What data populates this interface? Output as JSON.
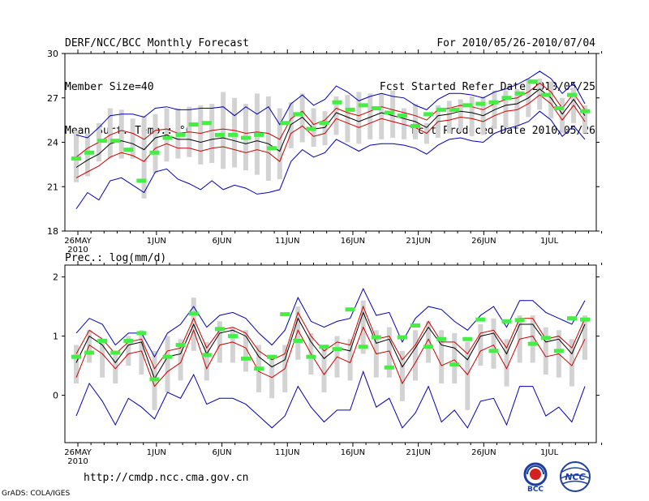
{
  "header": {
    "left_lines": [
      "DERF/NCC/BCC Monthly Forecast",
      "Member Size=40",
      "Mean Surf. Temp.: °C"
    ],
    "right_lines": [
      "For 2010/05/26-2010/07/04",
      "Fcst Started Refer Date 2010/05/25",
      "Fcst Produced Date 2010/05/26"
    ]
  },
  "footer": {
    "url": "http://cmdp.ncc.cma.gov.cn",
    "grads": "GrADS: COLA/IGES",
    "logo_bcc": "BCC",
    "logo_ncc": "NCC"
  },
  "colors": {
    "ensemble_mean": "#000000",
    "inner_bound": "#cc0000",
    "outer_bound": "#0000b0",
    "spread_bar": "#d3d3d3",
    "member_marker": "#44ee44"
  },
  "chart_data": [
    {
      "type": "line",
      "title": "Mean Surf. Temp.: °C",
      "x_tick_labels": [
        "26MAY",
        "1JUN",
        "6JUN",
        "11JUN",
        "16JUN",
        "21JUN",
        "26JUN",
        "1JUL"
      ],
      "x_tick_days": [
        0,
        6,
        11,
        16,
        21,
        26,
        31,
        36
      ],
      "x_sub_label": "2010",
      "ylim": [
        18,
        30
      ],
      "y_ticks": [
        18,
        21,
        24,
        27,
        30
      ],
      "series": [
        {
          "name": "mean",
          "values": [
            22.3,
            22.8,
            23.2,
            23.9,
            24.1,
            23.9,
            23.5,
            24.3,
            24.5,
            24.2,
            24.2,
            24.0,
            24.2,
            24.3,
            24.1,
            23.9,
            24.1,
            23.9,
            23.4,
            25.2,
            25.7,
            24.9,
            25.0,
            26.0,
            25.7,
            25.4,
            25.7,
            26.0,
            25.8,
            25.6,
            25.4,
            25.0,
            25.8,
            25.9,
            26.1,
            26.0,
            25.8,
            26.2,
            26.5,
            26.6,
            27.0,
            27.6,
            27.0,
            25.9,
            26.9,
            25.8
          ]
        },
        {
          "name": "upper_red",
          "values": [
            23.0,
            23.6,
            24.0,
            24.5,
            24.8,
            24.6,
            24.2,
            24.8,
            24.9,
            24.6,
            24.7,
            24.6,
            24.8,
            24.9,
            24.8,
            24.6,
            24.7,
            24.6,
            24.2,
            25.6,
            26.1,
            25.2,
            25.5,
            26.3,
            26.0,
            25.8,
            26.1,
            26.4,
            26.2,
            26.0,
            25.8,
            25.5,
            26.2,
            26.3,
            26.5,
            26.4,
            26.2,
            26.6,
            26.9,
            27.0,
            27.4,
            28.0,
            27.4,
            26.3,
            27.3,
            26.2
          ]
        },
        {
          "name": "lower_red",
          "values": [
            21.6,
            22.0,
            22.4,
            23.0,
            23.3,
            23.1,
            22.7,
            23.6,
            23.9,
            23.6,
            23.6,
            23.4,
            23.6,
            23.7,
            23.5,
            23.3,
            23.5,
            23.3,
            22.7,
            24.6,
            25.1,
            24.4,
            24.6,
            25.6,
            25.3,
            25.0,
            25.3,
            25.6,
            25.4,
            25.2,
            25.0,
            24.6,
            25.4,
            25.5,
            25.7,
            25.6,
            25.4,
            25.8,
            26.1,
            26.2,
            26.6,
            27.2,
            26.6,
            25.5,
            26.5,
            25.4
          ]
        },
        {
          "name": "upper_blue",
          "values": [
            24.5,
            24.3,
            25.0,
            25.8,
            25.9,
            25.9,
            25.7,
            26.3,
            26.4,
            26.2,
            26.2,
            26.3,
            26.3,
            26.4,
            25.8,
            26.4,
            25.9,
            26.4,
            25.2,
            26.6,
            27.2,
            26.5,
            26.9,
            27.8,
            27.4,
            26.8,
            27.1,
            27.3,
            27.1,
            27.0,
            26.5,
            26.2,
            26.9,
            27.3,
            27.3,
            27.2,
            27.0,
            27.4,
            27.6,
            27.9,
            28.3,
            28.8,
            28.3,
            27.3,
            28.0,
            26.6
          ]
        },
        {
          "name": "lower_blue",
          "values": [
            19.5,
            20.6,
            20.1,
            21.4,
            21.6,
            21.1,
            20.6,
            22.0,
            22.2,
            21.5,
            21.2,
            20.8,
            21.4,
            20.8,
            21.1,
            20.9,
            20.5,
            20.6,
            20.8,
            22.7,
            23.5,
            23.0,
            23.3,
            24.2,
            23.8,
            23.4,
            23.8,
            23.9,
            23.9,
            23.8,
            23.6,
            23.2,
            23.8,
            24.2,
            24.3,
            24.1,
            24.0,
            24.6,
            24.9,
            25.1,
            25.4,
            26.1,
            25.5,
            24.4,
            25.1,
            24.2
          ]
        },
        {
          "name": "spread_top",
          "values": [
            24.8,
            24.6,
            25.3,
            26.3,
            26.2,
            25.6,
            25.8,
            25.9,
            26.3,
            26.3,
            26.4,
            26.5,
            26.6,
            27.4,
            27.0,
            26.6,
            27.3,
            27.1,
            26.3,
            26.7,
            27.3,
            26.3,
            26.1,
            27.1,
            27.2,
            27.4,
            27.3,
            27.3,
            27.5,
            26.3,
            26.6,
            25.3,
            26.5,
            26.8,
            26.9,
            27.1,
            27.1,
            27.5,
            27.5,
            27.6,
            28.3,
            28.3,
            28.1,
            27.0,
            27.7,
            26.5
          ]
        },
        {
          "name": "spread_bottom",
          "values": [
            21.3,
            21.7,
            22.7,
            22.9,
            22.9,
            22.9,
            20.2,
            21.9,
            22.7,
            22.9,
            23.0,
            22.5,
            22.6,
            22.2,
            22.3,
            22.1,
            21.8,
            21.4,
            21.5,
            23.6,
            24.0,
            23.7,
            23.8,
            24.5,
            24.0,
            23.9,
            24.2,
            24.2,
            24.3,
            24.2,
            24.2,
            23.9,
            24.3,
            24.6,
            24.7,
            24.4,
            24.5,
            24.9,
            25.0,
            25.1,
            25.7,
            26.2,
            25.6,
            24.6,
            25.3,
            24.6
          ]
        },
        {
          "name": "green_markers",
          "values": [
            22.9,
            23.3,
            24.1,
            24.1,
            23.5,
            21.4,
            23.3,
            24.3,
            24.5,
            25.2,
            25.3,
            24.5,
            24.5,
            24.3,
            24.5,
            23.6,
            25.3,
            25.9,
            24.9,
            25.3,
            26.7,
            26.2,
            26.5,
            26.3,
            26.0,
            25.8,
            25.1,
            25.9,
            26.2,
            26.2,
            26.5,
            26.6,
            26.7,
            27.0,
            27.3,
            28.1,
            27.2,
            26.3,
            27.2,
            26.1
          ]
        }
      ]
    },
    {
      "type": "line",
      "title": "Prec.: log(mm/d)",
      "x_tick_labels": [
        "26MAY",
        "1JUN",
        "6JUN",
        "11JUN",
        "16JUN",
        "21JUN",
        "26JUN",
        "1JUL"
      ],
      "x_tick_days": [
        0,
        6,
        11,
        16,
        21,
        26,
        31,
        36
      ],
      "x_sub_label": "2010",
      "ylim": [
        -0.8,
        2.2
      ],
      "y_ticks": [
        0,
        1,
        2
      ],
      "series": [
        {
          "name": "mean",
          "values": [
            0.55,
            1.0,
            0.85,
            0.55,
            0.85,
            0.9,
            0.28,
            0.65,
            0.7,
            1.2,
            0.7,
            1.05,
            1.1,
            1.0,
            0.65,
            0.48,
            0.6,
            1.3,
            0.9,
            0.62,
            0.8,
            0.75,
            1.4,
            0.88,
            0.95,
            0.48,
            0.8,
            1.15,
            0.85,
            0.8,
            0.6,
            1.0,
            1.05,
            0.7,
            1.2,
            1.2,
            0.9,
            0.95,
            0.7,
            1.2
          ]
        },
        {
          "name": "upper_red",
          "values": [
            0.7,
            1.1,
            0.95,
            0.7,
            0.9,
            0.95,
            0.45,
            0.75,
            0.8,
            1.3,
            0.8,
            1.1,
            1.15,
            1.05,
            0.75,
            0.6,
            0.7,
            1.4,
            1.0,
            0.75,
            0.9,
            0.85,
            1.5,
            0.95,
            1.0,
            0.6,
            0.85,
            1.25,
            0.9,
            0.9,
            0.7,
            1.05,
            1.1,
            0.8,
            1.3,
            1.3,
            0.95,
            1.0,
            0.8,
            1.3
          ]
        },
        {
          "name": "lower_red",
          "values": [
            0.3,
            0.85,
            0.7,
            0.45,
            0.7,
            0.75,
            0.15,
            0.4,
            0.55,
            1.1,
            0.45,
            0.85,
            0.9,
            0.8,
            0.4,
            0.3,
            0.45,
            1.1,
            0.7,
            0.35,
            0.65,
            0.55,
            1.15,
            0.7,
            0.75,
            0.2,
            0.55,
            0.95,
            0.5,
            0.6,
            0.35,
            0.75,
            0.85,
            0.45,
            0.95,
            1.0,
            0.65,
            0.7,
            0.5,
            0.95
          ]
        },
        {
          "name": "upper_blue",
          "values": [
            1.05,
            1.3,
            1.2,
            0.85,
            1.05,
            1.05,
            0.65,
            1.05,
            1.2,
            1.5,
            1.15,
            1.35,
            1.4,
            1.3,
            1.05,
            0.85,
            1.1,
            1.65,
            1.25,
            1.15,
            1.25,
            1.3,
            1.8,
            1.35,
            1.4,
            0.9,
            1.3,
            1.5,
            1.45,
            1.25,
            1.1,
            1.35,
            1.5,
            1.15,
            1.6,
            1.6,
            1.4,
            1.3,
            1.2,
            1.6
          ]
        },
        {
          "name": "lower_blue",
          "values": [
            -0.35,
            0.2,
            -0.1,
            -0.5,
            -0.05,
            -0.2,
            -0.4,
            0.05,
            -0.05,
            0.35,
            -0.15,
            -0.05,
            -0.05,
            -0.15,
            -0.35,
            -0.55,
            -0.35,
            0.15,
            -0.2,
            -0.45,
            -0.25,
            -0.25,
            0.4,
            -0.2,
            -0.05,
            -0.55,
            -0.3,
            0.15,
            -0.45,
            -0.25,
            -0.55,
            -0.1,
            -0.05,
            -0.5,
            0.15,
            0.15,
            -0.35,
            -0.2,
            -0.45,
            0.15
          ]
        },
        {
          "name": "spread_top",
          "values": [
            0.85,
            1.1,
            0.9,
            0.7,
            1.0,
            1.1,
            0.75,
            1.0,
            0.95,
            1.65,
            0.9,
            1.25,
            1.15,
            1.1,
            0.85,
            0.65,
            0.85,
            1.5,
            1.05,
            0.85,
            1.0,
            0.95,
            1.6,
            1.1,
            1.15,
            0.75,
            1.1,
            1.25,
            1.1,
            1.05,
            0.9,
            1.2,
            1.3,
            0.95,
            1.35,
            1.35,
            1.15,
            1.1,
            0.95,
            1.35
          ]
        },
        {
          "name": "spread_bottom",
          "values": [
            0.2,
            0.55,
            0.3,
            0.2,
            0.5,
            0.35,
            -0.25,
            0.05,
            0.25,
            0.75,
            0.25,
            0.55,
            0.55,
            0.4,
            0.05,
            -0.05,
            0.05,
            0.6,
            0.35,
            0.05,
            0.3,
            0.25,
            0.7,
            0.3,
            0.3,
            -0.1,
            0.25,
            0.55,
            0.2,
            0.2,
            -0.25,
            0.5,
            0.45,
            0.15,
            0.55,
            0.55,
            0.35,
            0.3,
            0.15,
            0.6
          ]
        },
        {
          "name": "green_markers",
          "values": [
            0.65,
            0.72,
            0.92,
            0.72,
            0.92,
            1.05,
            0.27,
            0.65,
            0.85,
            1.38,
            0.68,
            1.12,
            1.0,
            0.62,
            0.45,
            0.65,
            1.37,
            0.92,
            0.65,
            0.82,
            0.78,
            1.45,
            0.82,
            0.98,
            0.47,
            0.98,
            1.18,
            0.82,
            0.95,
            0.52,
            0.95,
            1.28,
            0.75,
            1.25,
            1.27,
            0.87,
            0.97,
            0.75,
            1.3,
            1.28
          ]
        }
      ]
    }
  ]
}
